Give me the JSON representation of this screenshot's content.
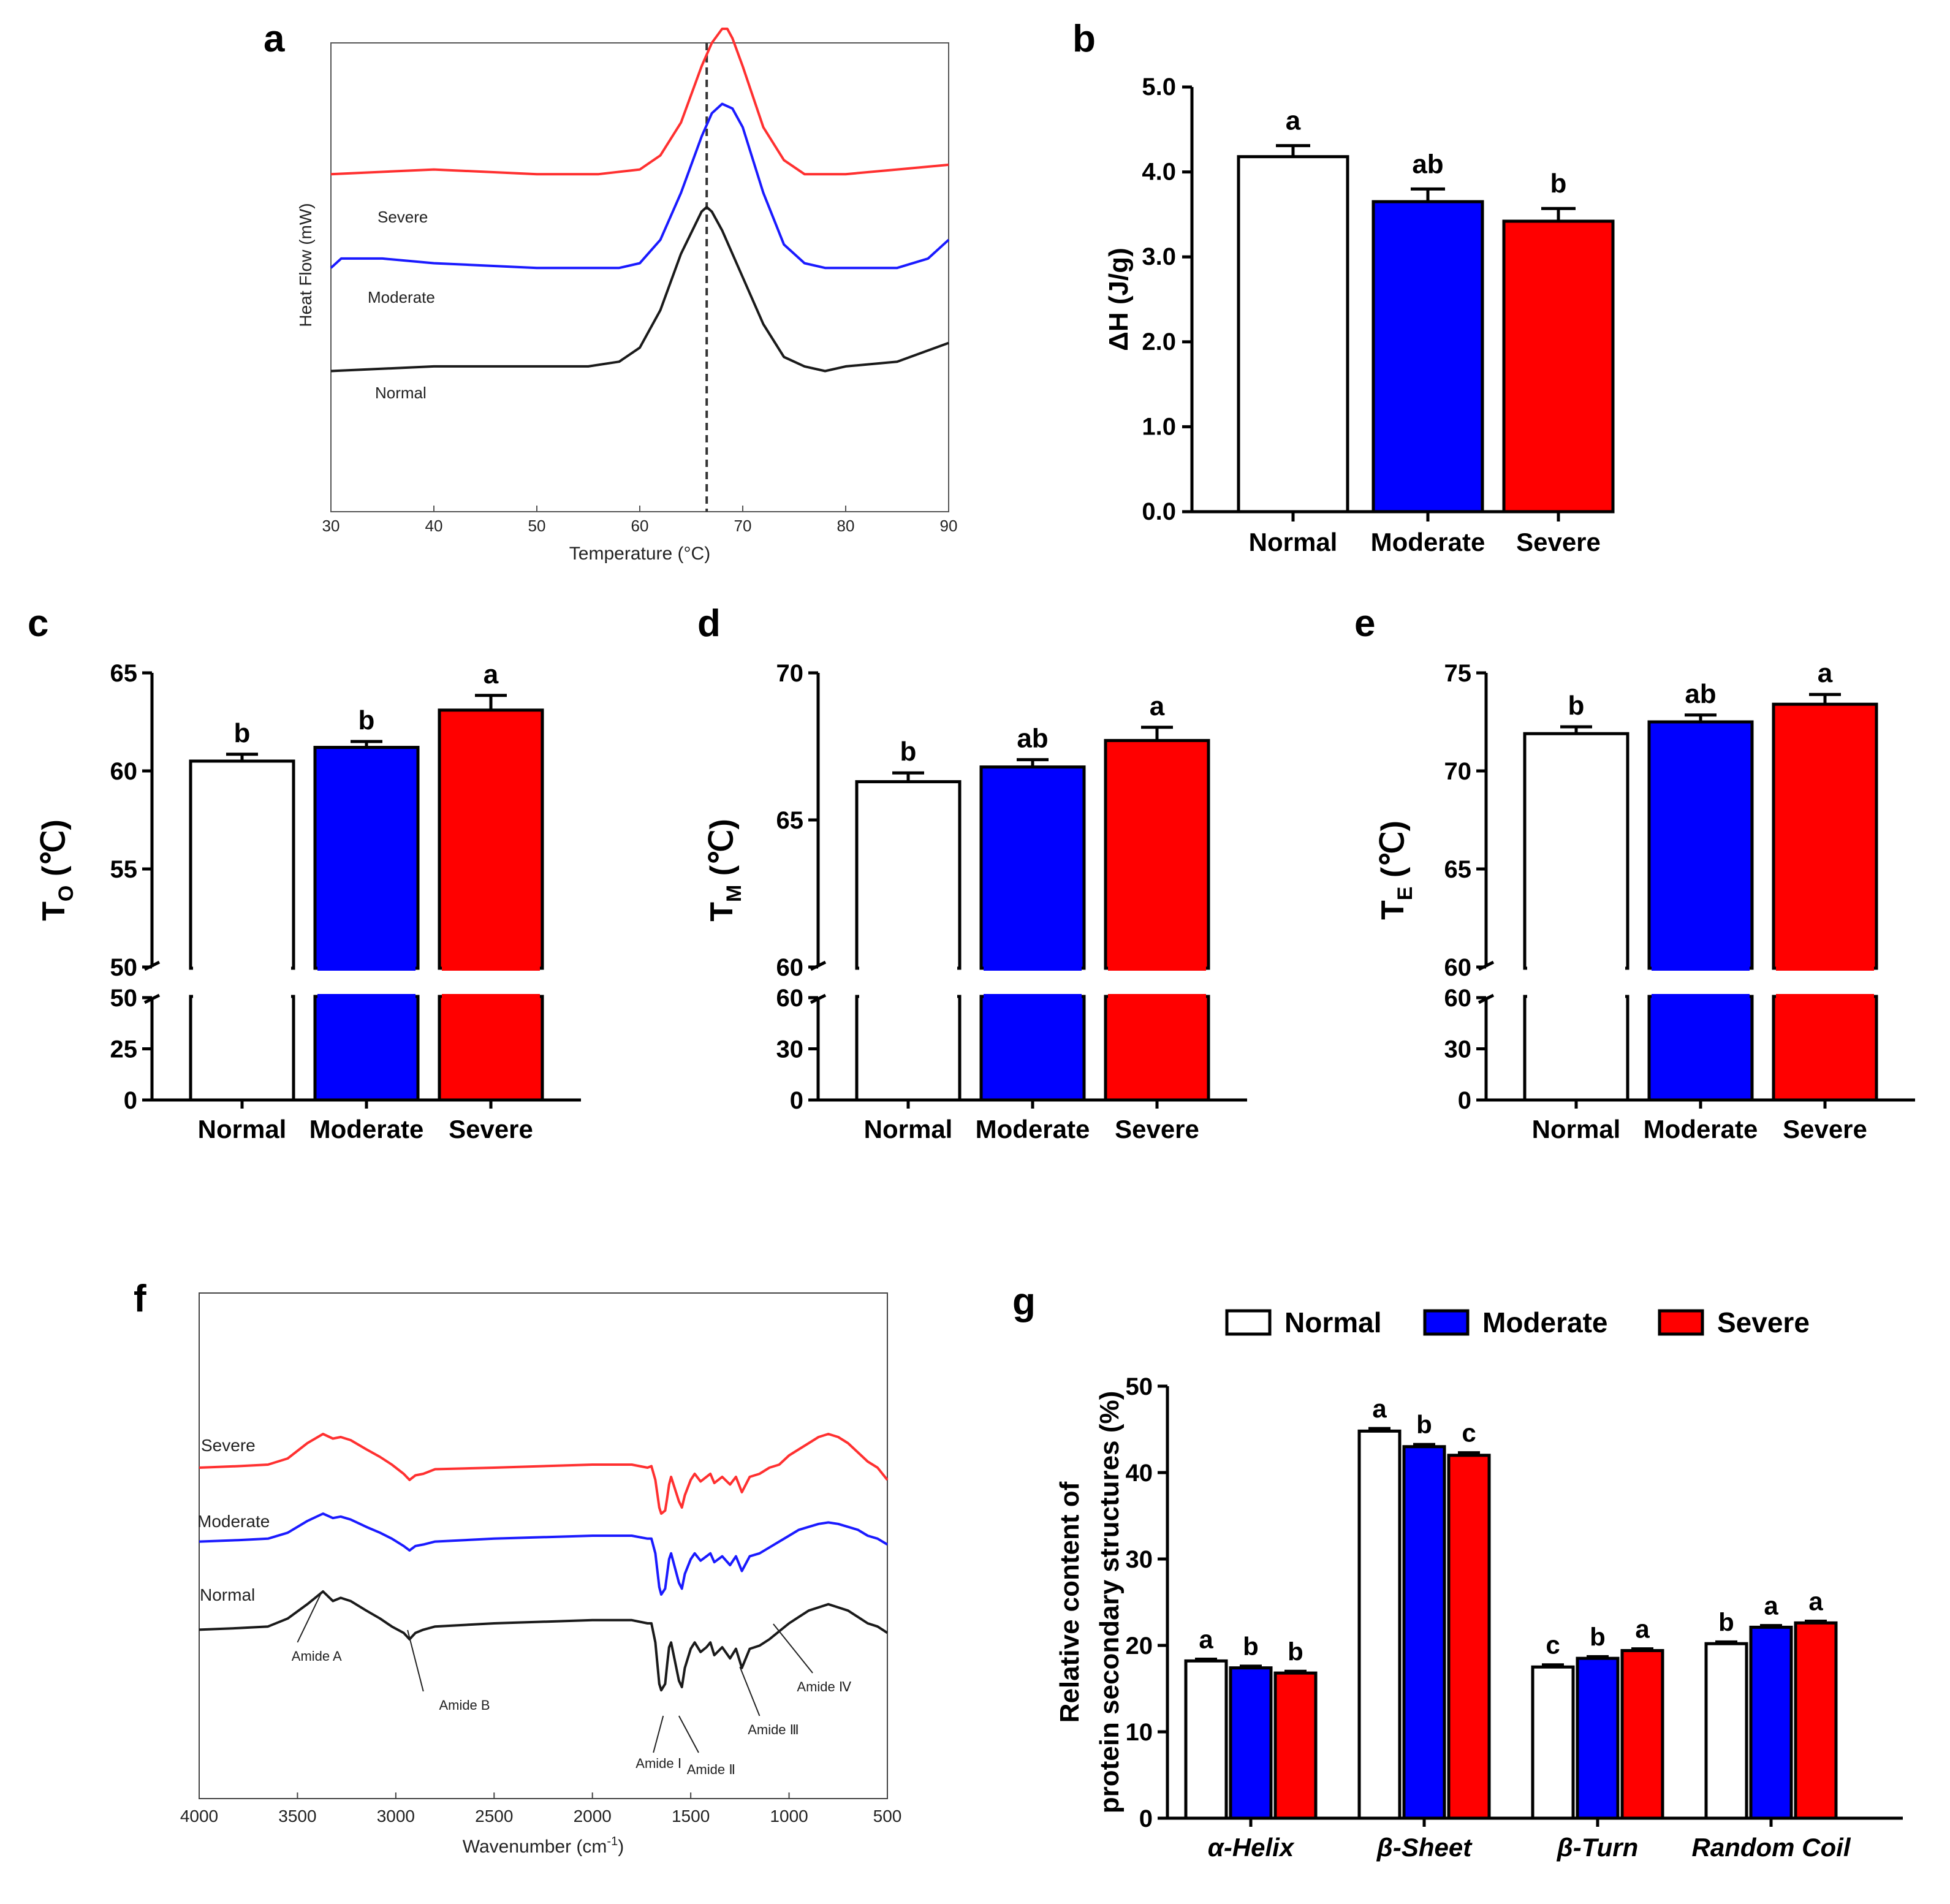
{
  "panel_letters": [
    "a",
    "b",
    "c",
    "d",
    "e",
    "f",
    "g"
  ],
  "colors": {
    "normal": "#ffffff",
    "moderate": "#0000ff",
    "severe": "#ff0000",
    "black": "#000000",
    "normal_line": "#1a1a1a",
    "moderate_line": "#1a1aff",
    "severe_line": "#ff3030"
  },
  "chart_data": [
    {
      "id": "a",
      "type": "line",
      "title": "",
      "xlabel": "Temperature (°C)",
      "ylabel": "Heat Flow (mW)",
      "xlim": [
        30,
        90
      ],
      "xticks": [
        30,
        40,
        50,
        60,
        70,
        80,
        90
      ],
      "reference_line_x": 66.5,
      "series": [
        {
          "name": "Severe",
          "x": [
            30,
            40,
            50,
            56,
            60,
            62,
            64,
            66,
            67,
            68,
            68.5,
            69,
            70,
            72,
            74,
            76,
            78,
            80,
            85,
            90
          ],
          "y": [
            0.72,
            0.73,
            0.72,
            0.72,
            0.73,
            0.76,
            0.83,
            0.95,
            1.0,
            1.03,
            1.03,
            1.01,
            0.95,
            0.82,
            0.75,
            0.72,
            0.72,
            0.72,
            0.73,
            0.74
          ]
        },
        {
          "name": "Moderate",
          "x": [
            30,
            31,
            35,
            40,
            50,
            58,
            60,
            62,
            64,
            66,
            67,
            68,
            69,
            70,
            72,
            74,
            76,
            78,
            80,
            85,
            88,
            90
          ],
          "y": [
            0.52,
            0.54,
            0.54,
            0.53,
            0.52,
            0.52,
            0.53,
            0.58,
            0.68,
            0.8,
            0.85,
            0.87,
            0.86,
            0.82,
            0.68,
            0.57,
            0.53,
            0.52,
            0.52,
            0.52,
            0.54,
            0.58
          ]
        },
        {
          "name": "Normal",
          "x": [
            30,
            40,
            50,
            55,
            58,
            60,
            62,
            64,
            66,
            66.5,
            67,
            68,
            70,
            72,
            74,
            76,
            78,
            80,
            85,
            90
          ],
          "y": [
            0.3,
            0.31,
            0.31,
            0.31,
            0.32,
            0.35,
            0.43,
            0.55,
            0.64,
            0.65,
            0.64,
            0.6,
            0.5,
            0.4,
            0.33,
            0.31,
            0.3,
            0.31,
            0.32,
            0.36
          ]
        }
      ]
    },
    {
      "id": "b",
      "type": "bar",
      "ylabel": "ΔH (J/g)",
      "ylim": [
        0,
        5
      ],
      "yticks": [
        "0.0",
        "1.0",
        "2.0",
        "3.0",
        "4.0",
        "5.0"
      ],
      "categories": [
        "Normal",
        "Moderate",
        "Severe"
      ],
      "values": [
        4.18,
        3.65,
        3.42
      ],
      "errors": [
        0.13,
        0.15,
        0.15
      ],
      "letters": [
        "a",
        "ab",
        "b"
      ]
    },
    {
      "id": "c",
      "type": "bar",
      "ylabel_main": "T",
      "ylabel_sub": "O",
      "ylabel_unit": "(℃)",
      "broken_axis": true,
      "upper_range": [
        50,
        65
      ],
      "upper_ticks": [
        "50",
        "55",
        "60",
        "65"
      ],
      "lower_range": [
        0,
        50
      ],
      "lower_ticks": [
        "0",
        "25",
        "50"
      ],
      "categories": [
        "Normal",
        "Moderate",
        "Severe"
      ],
      "values": [
        60.5,
        61.2,
        63.1
      ],
      "errors": [
        0.35,
        0.3,
        0.75
      ],
      "letters": [
        "b",
        "b",
        "a"
      ]
    },
    {
      "id": "d",
      "type": "bar",
      "ylabel_main": "T",
      "ylabel_sub": "M",
      "ylabel_unit": "(℃)",
      "broken_axis": true,
      "upper_range": [
        60,
        70
      ],
      "upper_ticks": [
        "60",
        "65",
        "70"
      ],
      "lower_range": [
        0,
        60
      ],
      "lower_ticks": [
        "0",
        "30",
        "60"
      ],
      "categories": [
        "Normal",
        "Moderate",
        "Severe"
      ],
      "values": [
        66.3,
        66.8,
        67.7
      ],
      "errors": [
        0.3,
        0.25,
        0.45
      ],
      "letters": [
        "b",
        "ab",
        "a"
      ]
    },
    {
      "id": "e",
      "type": "bar",
      "ylabel_main": "T",
      "ylabel_sub": "E",
      "ylabel_unit": "(℃)",
      "broken_axis": true,
      "upper_range": [
        60,
        75
      ],
      "upper_ticks": [
        "60",
        "65",
        "70",
        "75"
      ],
      "lower_range": [
        0,
        60
      ],
      "lower_ticks": [
        "0",
        "30",
        "60"
      ],
      "categories": [
        "Normal",
        "Moderate",
        "Severe"
      ],
      "values": [
        71.9,
        72.5,
        73.4
      ],
      "errors": [
        0.35,
        0.35,
        0.5
      ],
      "letters": [
        "b",
        "ab",
        "a"
      ]
    },
    {
      "id": "f",
      "type": "line",
      "xlabel": "Wavenumber (cm",
      "xlabel_sup": "-1",
      "xlabel_end": ")",
      "xlim": [
        4000,
        500
      ],
      "xticks": [
        4000,
        3500,
        3000,
        2500,
        2000,
        1500,
        1000,
        500
      ],
      "series": [
        {
          "name": "Severe",
          "x": [
            4000,
            3800,
            3650,
            3550,
            3450,
            3370,
            3320,
            3280,
            3230,
            3150,
            3080,
            3020,
            2960,
            2930,
            2900,
            2860,
            2800,
            2500,
            2000,
            1800,
            1720,
            1700,
            1680,
            1660,
            1650,
            1630,
            1620,
            1610,
            1600,
            1580,
            1560,
            1545,
            1530,
            1500,
            1480,
            1450,
            1420,
            1400,
            1380,
            1340,
            1300,
            1270,
            1240,
            1200,
            1150,
            1100,
            1050,
            1000,
            950,
            900,
            850,
            800,
            750,
            700,
            650,
            600,
            550,
            500
          ],
          "y": [
            0.56,
            0.57,
            0.58,
            0.62,
            0.72,
            0.78,
            0.75,
            0.76,
            0.74,
            0.68,
            0.63,
            0.58,
            0.52,
            0.48,
            0.51,
            0.52,
            0.55,
            0.56,
            0.58,
            0.58,
            0.56,
            0.57,
            0.48,
            0.3,
            0.26,
            0.28,
            0.36,
            0.45,
            0.5,
            0.42,
            0.34,
            0.3,
            0.38,
            0.48,
            0.52,
            0.47,
            0.5,
            0.52,
            0.46,
            0.5,
            0.45,
            0.5,
            0.4,
            0.5,
            0.52,
            0.56,
            0.58,
            0.64,
            0.68,
            0.72,
            0.76,
            0.78,
            0.76,
            0.72,
            0.66,
            0.6,
            0.56,
            0.48
          ]
        },
        {
          "name": "Moderate",
          "x": [
            4000,
            3800,
            3650,
            3550,
            3450,
            3370,
            3320,
            3280,
            3230,
            3150,
            3080,
            3020,
            2960,
            2930,
            2900,
            2860,
            2800,
            2500,
            2000,
            1800,
            1720,
            1700,
            1680,
            1660,
            1650,
            1630,
            1620,
            1610,
            1600,
            1580,
            1560,
            1545,
            1530,
            1500,
            1480,
            1450,
            1420,
            1400,
            1380,
            1340,
            1300,
            1270,
            1240,
            1200,
            1150,
            1100,
            1050,
            1000,
            950,
            900,
            850,
            800,
            750,
            700,
            650,
            600,
            550,
            500
          ],
          "y": [
            0.56,
            0.57,
            0.58,
            0.62,
            0.7,
            0.75,
            0.72,
            0.73,
            0.71,
            0.66,
            0.62,
            0.58,
            0.53,
            0.5,
            0.53,
            0.54,
            0.56,
            0.58,
            0.6,
            0.6,
            0.58,
            0.58,
            0.48,
            0.25,
            0.2,
            0.24,
            0.34,
            0.44,
            0.48,
            0.38,
            0.28,
            0.24,
            0.34,
            0.44,
            0.48,
            0.43,
            0.46,
            0.48,
            0.42,
            0.46,
            0.4,
            0.46,
            0.36,
            0.46,
            0.48,
            0.52,
            0.56,
            0.6,
            0.64,
            0.66,
            0.68,
            0.69,
            0.68,
            0.66,
            0.64,
            0.6,
            0.58,
            0.54
          ]
        },
        {
          "name": "Normal",
          "x": [
            4000,
            3800,
            3650,
            3550,
            3450,
            3370,
            3320,
            3280,
            3230,
            3150,
            3080,
            3020,
            2960,
            2930,
            2900,
            2860,
            2800,
            2500,
            2000,
            1800,
            1720,
            1700,
            1680,
            1660,
            1650,
            1630,
            1620,
            1610,
            1600,
            1580,
            1560,
            1545,
            1530,
            1500,
            1480,
            1450,
            1420,
            1400,
            1380,
            1340,
            1300,
            1270,
            1240,
            1200,
            1150,
            1100,
            1050,
            1000,
            950,
            900,
            850,
            800,
            750,
            700,
            650,
            600,
            550,
            500
          ],
          "y": [
            0.56,
            0.57,
            0.58,
            0.63,
            0.72,
            0.8,
            0.74,
            0.76,
            0.74,
            0.68,
            0.63,
            0.58,
            0.54,
            0.5,
            0.54,
            0.56,
            0.58,
            0.6,
            0.62,
            0.62,
            0.6,
            0.6,
            0.48,
            0.22,
            0.18,
            0.22,
            0.34,
            0.45,
            0.48,
            0.36,
            0.24,
            0.2,
            0.32,
            0.44,
            0.48,
            0.42,
            0.45,
            0.48,
            0.4,
            0.45,
            0.38,
            0.44,
            0.32,
            0.44,
            0.46,
            0.5,
            0.55,
            0.6,
            0.64,
            0.68,
            0.7,
            0.72,
            0.7,
            0.68,
            0.64,
            0.6,
            0.58,
            0.54
          ]
        }
      ],
      "annotations": [
        "Amide A",
        "Amide B",
        "Amide Ⅰ",
        "Amide Ⅱ",
        "Amide Ⅲ",
        "Amide Ⅳ"
      ]
    },
    {
      "id": "g",
      "type": "bar",
      "ylabel_line1": "Relative content of",
      "ylabel_line2": "protein secondary structures (%)",
      "ylim": [
        0,
        50
      ],
      "yticks": [
        "0",
        "10",
        "20",
        "30",
        "40",
        "50"
      ],
      "legend": [
        "Normal",
        "Moderate",
        "Severe"
      ],
      "categories": [
        "α-Helix",
        "β-Sheet",
        "β-Turn",
        "Random Coil"
      ],
      "series": [
        {
          "name": "Normal",
          "values": [
            18.2,
            44.8,
            17.5,
            20.2
          ],
          "errors": [
            0.2,
            0.3,
            0.25,
            0.2
          ],
          "letters": [
            "a",
            "a",
            "c",
            "b"
          ]
        },
        {
          "name": "Moderate",
          "values": [
            17.4,
            43.0,
            18.5,
            22.1
          ],
          "errors": [
            0.2,
            0.25,
            0.2,
            0.2
          ],
          "letters": [
            "b",
            "b",
            "b",
            "a"
          ]
        },
        {
          "name": "Severe",
          "values": [
            16.8,
            42.0,
            19.4,
            22.6
          ],
          "errors": [
            0.2,
            0.3,
            0.2,
            0.2
          ],
          "letters": [
            "b",
            "c",
            "a",
            "a"
          ]
        }
      ]
    }
  ]
}
